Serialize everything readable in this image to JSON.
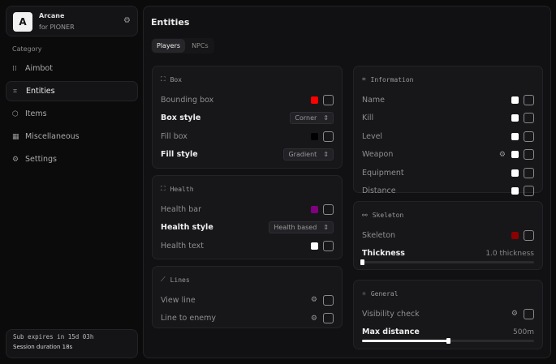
{
  "app": {
    "logo": "A",
    "name": "Arcane",
    "subtitle": "for PIONER"
  },
  "sidebar": {
    "category_label": "Category",
    "active": "Entities",
    "items": [
      {
        "label": "Aimbot",
        "icon": "crosshair-icon"
      },
      {
        "label": "Entities",
        "icon": "scan-face-icon"
      },
      {
        "label": "Items",
        "icon": "box-icon"
      },
      {
        "label": "Miscellaneous",
        "icon": "blocks-icon"
      },
      {
        "label": "Settings",
        "icon": "gear-icon"
      }
    ]
  },
  "subscription": {
    "expires": "Sub expires in 15d 03h",
    "session": "Session duration 18s"
  },
  "main": {
    "title": "Entities",
    "tabs": [
      {
        "label": "Players",
        "active": true
      },
      {
        "label": "NPCs",
        "active": false
      }
    ]
  },
  "cards": {
    "box": {
      "title": "Box",
      "rows": [
        {
          "label": "Bounding box",
          "type": "toggle",
          "color": "#ff0000",
          "checked": false
        },
        {
          "label": "Box style",
          "type": "select",
          "value": "Corner"
        },
        {
          "label": "Fill box",
          "type": "toggle",
          "color": "#000000",
          "checked": false
        },
        {
          "label": "Fill style",
          "type": "select",
          "value": "Gradient"
        }
      ]
    },
    "health": {
      "title": "Health",
      "rows": [
        {
          "label": "Health bar",
          "type": "toggle",
          "color": "#800080",
          "checked": false
        },
        {
          "label": "Health style",
          "type": "select",
          "value": "Health based"
        },
        {
          "label": "Health text",
          "type": "toggle",
          "color": "#ffffff",
          "checked": false
        }
      ]
    },
    "lines": {
      "title": "Lines",
      "rows": [
        {
          "label": "View line",
          "type": "toggle",
          "gear": true,
          "checked": false
        },
        {
          "label": "Line to enemy",
          "type": "toggle",
          "gear": true,
          "checked": false
        }
      ]
    },
    "information": {
      "title": "Information",
      "rows": [
        {
          "label": "Name",
          "type": "toggle",
          "color": "#ffffff",
          "checked": false
        },
        {
          "label": "Kill",
          "type": "toggle",
          "color": "#ffffff",
          "checked": false
        },
        {
          "label": "Level",
          "type": "toggle",
          "color": "#ffffff",
          "checked": false
        },
        {
          "label": "Weapon",
          "type": "toggle",
          "color": "#ffffff",
          "gear": true,
          "checked": false
        },
        {
          "label": "Equipment",
          "type": "toggle",
          "color": "#ffffff",
          "checked": false
        },
        {
          "label": "Distance",
          "type": "toggle",
          "color": "#ffffff",
          "checked": false
        }
      ]
    },
    "skeleton": {
      "title": "Skeleton",
      "rows": [
        {
          "label": "Skeleton",
          "type": "toggle",
          "color": "#8b0000",
          "checked": false
        },
        {
          "label": "Thickness",
          "type": "slider",
          "value": "1.0 thickness",
          "fraction": 0.0
        }
      ]
    },
    "general": {
      "title": "General",
      "rows": [
        {
          "label": "Visibility check",
          "type": "toggle",
          "gear": true,
          "checked": false
        },
        {
          "label": "Max distance",
          "type": "slider",
          "value": "500m",
          "fraction": 0.5
        }
      ]
    }
  }
}
